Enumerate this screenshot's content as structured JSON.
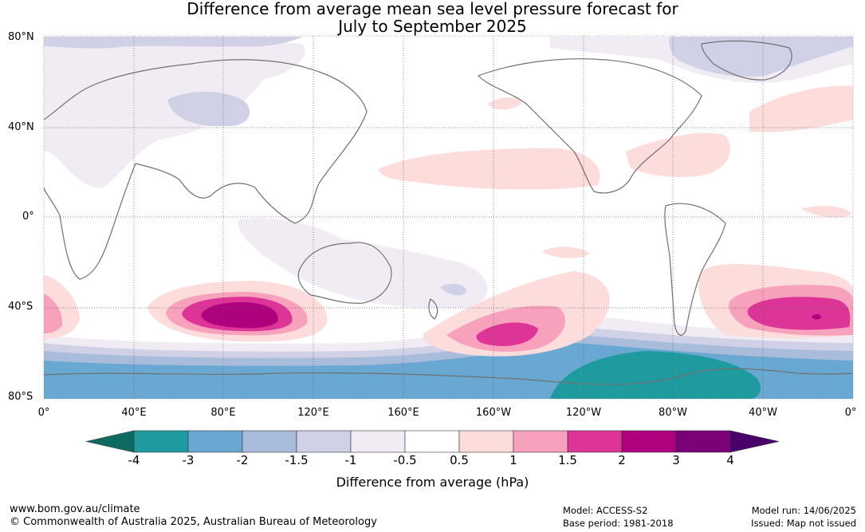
{
  "title": {
    "line1": "Difference from average mean sea level pressure forecast for",
    "line2": "July to September 2025"
  },
  "map": {
    "projection": "equirectangular",
    "lat_labels": [
      "80°N",
      "40°N",
      "0°",
      "40°S",
      "80°S"
    ],
    "lon_labels": [
      "0°",
      "40°E",
      "80°E",
      "120°E",
      "160°E",
      "160°W",
      "120°W",
      "80°W",
      "40°W",
      "0°"
    ],
    "ocean_color": "#ffffff",
    "coast_color": "#707070",
    "grid": "dotted"
  },
  "colorbar": {
    "labels": [
      "-4",
      "-3",
      "-2",
      "-1.5",
      "-1",
      "-0.5",
      "0.5",
      "1",
      "1.5",
      "2",
      "3",
      "4"
    ],
    "colors": [
      "#0e6b62",
      "#1f9ba0",
      "#69a8d2",
      "#a9bcdb",
      "#d0d1e6",
      "#f1ecf3",
      "#ffffff",
      "#fddcdc",
      "#f7a1bd",
      "#dd3497",
      "#ae017e",
      "#7a0177",
      "#49006a"
    ],
    "title": "Difference from average (hPa)"
  },
  "footer": {
    "url": "www.bom.gov.au/climate",
    "copyright": "© Commonwealth of Australia 2025, Australian Bureau of Meteorology",
    "model": "Model: ACCESS-S2",
    "base_period": "Base period: 1981-2018",
    "model_run": "Model run: 14/06/2025",
    "issued": "Issued: Map not issued"
  }
}
